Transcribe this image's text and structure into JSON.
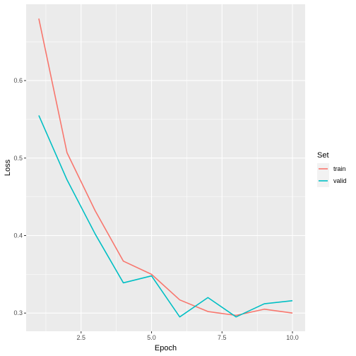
{
  "chart_data": {
    "type": "line",
    "title": "",
    "xlabel": "Epoch",
    "ylabel": "Loss",
    "xlim": [
      0.55,
      10.45
    ],
    "ylim": [
      0.2765,
      0.6985
    ],
    "xticks": [
      2.5,
      5.0,
      7.5,
      10.0
    ],
    "xtick_labels": [
      "2.5",
      "5.0",
      "7.5",
      "10.0"
    ],
    "yticks": [
      0.3,
      0.4,
      0.5,
      0.6
    ],
    "ytick_labels": [
      "0.3",
      "0.4",
      "0.5",
      "0.6"
    ],
    "grid": true,
    "legend": {
      "title": "Set",
      "position": "right"
    },
    "x": [
      1,
      2,
      3,
      4,
      5,
      6,
      7,
      8,
      9,
      10
    ],
    "series": [
      {
        "name": "train",
        "color": "#F8766D",
        "values": [
          0.68,
          0.507,
          0.432,
          0.367,
          0.35,
          0.317,
          0.302,
          0.297,
          0.305,
          0.3
        ]
      },
      {
        "name": "valid",
        "color": "#00BFC4",
        "values": [
          0.555,
          0.472,
          0.402,
          0.339,
          0.348,
          0.295,
          0.32,
          0.295,
          0.312,
          0.316
        ]
      }
    ]
  }
}
